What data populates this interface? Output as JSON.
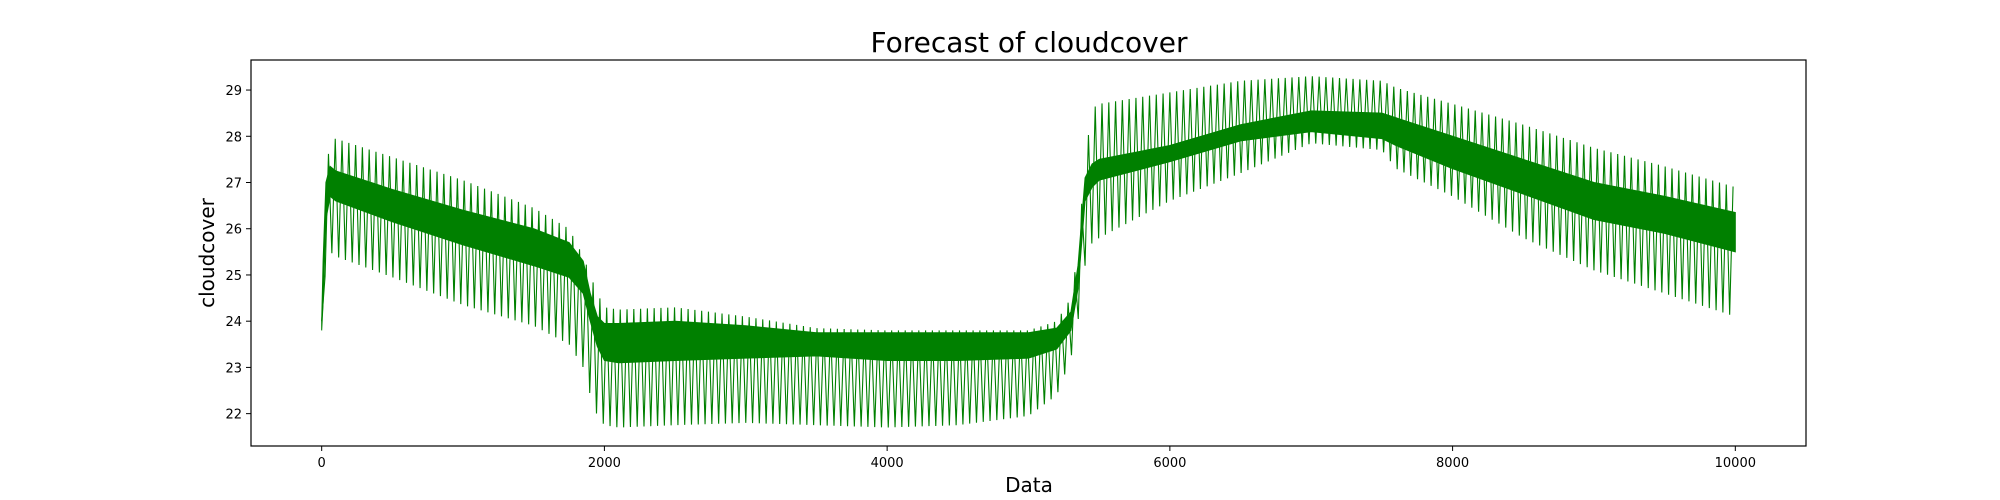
{
  "chart_data": {
    "type": "line",
    "title": "Forecast of cloudcover",
    "xlabel": "Data",
    "ylabel": "cloudcover",
    "xlim": [
      -500,
      10500
    ],
    "ylim": [
      21.3,
      29.65
    ],
    "xticks": [
      0,
      2000,
      4000,
      6000,
      8000,
      10000
    ],
    "yticks": [
      22,
      23,
      24,
      25,
      26,
      27,
      28,
      29
    ],
    "xtick_labels": [
      "0",
      "2000",
      "4000",
      "6000",
      "8000",
      "10000"
    ],
    "ytick_labels": [
      "22",
      "23",
      "24",
      "25",
      "26",
      "27",
      "28",
      "29"
    ],
    "grid": false,
    "series": [
      {
        "color": "#008000",
        "oscillation_period": 48,
        "envelope_x": [
          0,
          10,
          30,
          60,
          100,
          500,
          1000,
          1500,
          1750,
          1850,
          1900,
          1950,
          2000,
          2100,
          2500,
          3000,
          3500,
          4000,
          4500,
          5000,
          5200,
          5300,
          5350,
          5400,
          5450,
          5500,
          6000,
          6500,
          7000,
          7500,
          7600,
          8000,
          8500,
          9000,
          9500,
          10000
        ],
        "envelope_upper": [
          24.0,
          25.5,
          27.2,
          27.9,
          27.95,
          27.55,
          27.05,
          26.45,
          26.0,
          25.4,
          25.0,
          24.6,
          24.3,
          24.25,
          24.3,
          24.1,
          23.85,
          23.8,
          23.8,
          23.8,
          24.0,
          24.5,
          25.5,
          27.5,
          28.6,
          28.7,
          28.95,
          29.2,
          29.3,
          29.2,
          29.05,
          28.7,
          28.25,
          27.75,
          27.35,
          26.9
        ],
        "envelope_lower": [
          23.8,
          24.2,
          25.3,
          25.5,
          25.4,
          24.95,
          24.35,
          23.9,
          23.5,
          23.0,
          22.4,
          21.95,
          21.75,
          21.7,
          21.75,
          21.8,
          21.75,
          21.7,
          21.75,
          21.95,
          22.4,
          23.2,
          24.0,
          25.2,
          25.7,
          25.8,
          26.6,
          27.2,
          27.85,
          27.7,
          27.3,
          26.7,
          25.8,
          25.1,
          24.6,
          24.1
        ],
        "band_upper": [
          24.0,
          25.3,
          27.0,
          27.35,
          27.25,
          26.85,
          26.4,
          26.0,
          25.7,
          25.3,
          24.6,
          24.1,
          23.95,
          23.95,
          24.0,
          23.9,
          23.75,
          23.75,
          23.75,
          23.75,
          23.85,
          24.2,
          25.2,
          27.1,
          27.4,
          27.5,
          27.8,
          28.25,
          28.55,
          28.5,
          28.4,
          28.0,
          27.5,
          27.0,
          26.7,
          26.35
        ],
        "band_lower": [
          23.8,
          24.4,
          26.2,
          26.7,
          26.6,
          26.15,
          25.65,
          25.2,
          24.95,
          24.6,
          24.0,
          23.45,
          23.15,
          23.1,
          23.15,
          23.2,
          23.25,
          23.15,
          23.15,
          23.2,
          23.4,
          23.8,
          24.7,
          26.6,
          26.9,
          27.05,
          27.45,
          27.9,
          28.1,
          27.95,
          27.8,
          27.3,
          26.75,
          26.2,
          25.9,
          25.5
        ]
      }
    ]
  }
}
